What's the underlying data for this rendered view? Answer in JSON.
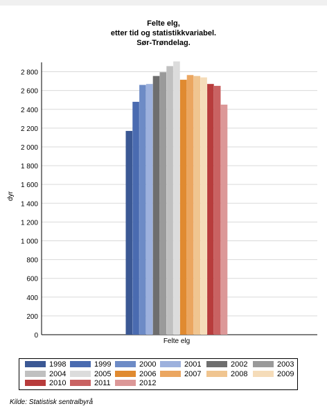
{
  "title_lines": [
    "Felte elg,",
    "etter tid og statistikkvariabel.",
    "Sør-Trøndelag."
  ],
  "source": "Kilde: Statistisk sentralbyrå",
  "chart_data": {
    "type": "bar",
    "title": "Felte elg, etter tid og statistikkvariabel. Sør-Trøndelag.",
    "categories": [
      "Felte elg"
    ],
    "ylabel": "dyr",
    "xlabel": "",
    "ylim": [
      0,
      2900
    ],
    "yticks": [
      0,
      200,
      400,
      600,
      800,
      1000,
      1200,
      1400,
      1600,
      1800,
      2000,
      2200,
      2400,
      2600,
      2800
    ],
    "ytick_labels": [
      "0",
      "200",
      "400",
      "600",
      "800",
      "1 000",
      "1 200",
      "1 400",
      "1 600",
      "1 800",
      "2 000",
      "2 200",
      "2 400",
      "2 600",
      "2 800"
    ],
    "grid": true,
    "legend_position": "bottom",
    "series": [
      {
        "name": "1998",
        "values": [
          2170
        ],
        "color": "#3b5894"
      },
      {
        "name": "1999",
        "values": [
          2480
        ],
        "color": "#4a6bb0"
      },
      {
        "name": "2000",
        "values": [
          2660
        ],
        "color": "#6d8bc6"
      },
      {
        "name": "2001",
        "values": [
          2670
        ],
        "color": "#9db1dd"
      },
      {
        "name": "2002",
        "values": [
          2755
        ],
        "color": "#6e6e6e"
      },
      {
        "name": "2003",
        "values": [
          2795
        ],
        "color": "#9a9a9a"
      },
      {
        "name": "2004",
        "values": [
          2860
        ],
        "color": "#c0c0c0"
      },
      {
        "name": "2005",
        "values": [
          2910
        ],
        "color": "#dcdcdc"
      },
      {
        "name": "2006",
        "values": [
          2715
        ],
        "color": "#e08a30"
      },
      {
        "name": "2007",
        "values": [
          2765
        ],
        "color": "#eba660"
      },
      {
        "name": "2008",
        "values": [
          2755
        ],
        "color": "#f0c590"
      },
      {
        "name": "2009",
        "values": [
          2740
        ],
        "color": "#f5dcb9"
      },
      {
        "name": "2010",
        "values": [
          2670
        ],
        "color": "#b83c3c"
      },
      {
        "name": "2011",
        "values": [
          2650
        ],
        "color": "#c96262"
      },
      {
        "name": "2012",
        "values": [
          2450
        ],
        "color": "#dc9898"
      }
    ]
  }
}
